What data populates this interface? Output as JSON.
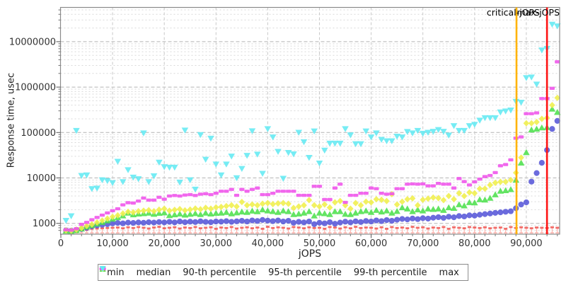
{
  "chart_data": {
    "type": "scatter",
    "title": "",
    "xlabel": "jOPS",
    "ylabel": "Response time, usec",
    "legend_position": "bottom",
    "x_axis": {
      "min": 0,
      "max": 96500,
      "tick_values": [
        0,
        10000,
        20000,
        30000,
        40000,
        50000,
        60000,
        70000,
        80000,
        90000
      ],
      "tick_labels": [
        "0",
        "10,000",
        "20,000",
        "30,000",
        "40,000",
        "50,000",
        "60,000",
        "70,000",
        "80,000",
        "90,000"
      ],
      "minor_tick_step": 2000
    },
    "y_axis": {
      "scale": "log",
      "min": 600,
      "max": 56000000,
      "tick_values": [
        1000,
        10000,
        100000,
        1000000,
        10000000
      ],
      "tick_labels": [
        "1000",
        "10000",
        "100000",
        "1000000",
        "10000000"
      ]
    },
    "annotations": [
      {
        "label": "critical-jOPS",
        "x": 88100,
        "color": "#ffb300"
      },
      {
        "label": "max-jOPS",
        "x": 94000,
        "color": "#fe1414"
      }
    ],
    "x": [
      1000,
      2000,
      3000,
      4000,
      5000,
      6000,
      7000,
      8000,
      9000,
      10000,
      11000,
      12000,
      13000,
      14000,
      15000,
      16000,
      17000,
      18000,
      19000,
      20000,
      21000,
      22000,
      23000,
      24000,
      25000,
      26000,
      27000,
      28000,
      29000,
      30000,
      31000,
      32000,
      33000,
      34000,
      35000,
      36000,
      37000,
      38000,
      39000,
      40000,
      41000,
      42000,
      43000,
      44000,
      45000,
      46000,
      47000,
      48000,
      49000,
      50000,
      51000,
      52000,
      53000,
      54000,
      55000,
      56000,
      57000,
      58000,
      59000,
      60000,
      61000,
      62000,
      63000,
      64000,
      65000,
      66000,
      67000,
      68000,
      69000,
      70000,
      71000,
      72000,
      73000,
      74000,
      75000,
      76000,
      77000,
      78000,
      79000,
      80000,
      81000,
      82000,
      83000,
      84000,
      85000,
      86000,
      87000,
      88000,
      89000,
      90000,
      91000,
      92000,
      93000,
      94000,
      95000,
      96000
    ],
    "series": [
      {
        "name": "min",
        "key": "min",
        "marker": "square-errorbar",
        "color": "#f05550",
        "values": [
          680,
          660,
          690,
          700,
          720,
          760,
          770,
          780,
          790,
          800,
          810,
          780,
          820,
          790,
          830,
          800,
          770,
          810,
          840,
          780,
          800,
          820,
          770,
          810,
          790,
          830,
          780,
          800,
          820,
          760,
          810,
          790,
          830,
          770,
          800,
          820,
          780,
          810,
          760,
          840,
          790,
          820,
          800,
          770,
          830,
          810,
          780,
          820,
          790,
          800,
          760,
          830,
          810,
          770,
          820,
          780,
          840,
          790,
          810,
          800,
          770,
          820,
          760,
          830,
          790,
          810,
          780,
          840,
          800,
          820,
          770,
          810,
          790,
          830,
          760,
          820,
          800,
          780,
          830,
          810,
          790,
          820,
          780,
          800,
          810,
          760,
          830,
          790,
          820,
          800,
          780,
          810,
          800,
          790,
          820,
          800
        ]
      },
      {
        "name": "median",
        "key": "median",
        "marker": "circle",
        "color": "#5757d8",
        "values": [
          700,
          690,
          720,
          750,
          800,
          860,
          900,
          930,
          960,
          1000,
          1020,
          1000,
          1040,
          1020,
          1050,
          1030,
          1060,
          1040,
          1070,
          1050,
          1080,
          1050,
          1100,
          1060,
          1090,
          1070,
          1110,
          1080,
          1060,
          1100,
          1090,
          1120,
          1080,
          1110,
          1140,
          1100,
          1160,
          1130,
          1190,
          1150,
          1120,
          1160,
          1100,
          1140,
          1030,
          1080,
          1050,
          1100,
          960,
          1030,
          1000,
          1060,
          980,
          1040,
          1090,
          1050,
          1110,
          1070,
          1130,
          1100,
          1160,
          1120,
          1180,
          1140,
          1200,
          1250,
          1220,
          1280,
          1240,
          1300,
          1270,
          1330,
          1370,
          1320,
          1400,
          1360,
          1450,
          1420,
          1500,
          1480,
          1550,
          1600,
          1650,
          1700,
          1750,
          1800,
          1850,
          2150,
          2600,
          2900,
          8300,
          12800,
          21500,
          41000,
          120000,
          180000
        ]
      },
      {
        "name": "90-th percentile",
        "key": "p90",
        "marker": "triangle-up",
        "color": "#4de04d",
        "values": [
          680,
          670,
          700,
          760,
          840,
          900,
          980,
          1060,
          1150,
          1250,
          1350,
          1480,
          1700,
          1560,
          1620,
          1650,
          1700,
          1600,
          1680,
          1720,
          1500,
          1560,
          1620,
          1540,
          1600,
          1660,
          1580,
          1700,
          1620,
          1680,
          1700,
          1760,
          1640,
          1720,
          1800,
          1760,
          1880,
          1820,
          2000,
          1900,
          1840,
          1760,
          1900,
          1830,
          1580,
          1620,
          1700,
          1830,
          1470,
          1700,
          1650,
          1580,
          1830,
          1830,
          1600,
          1580,
          1700,
          1830,
          1900,
          1760,
          1950,
          1800,
          1900,
          1700,
          1850,
          2230,
          2100,
          1830,
          2000,
          1900,
          2100,
          2050,
          2100,
          1950,
          2230,
          2160,
          2600,
          2450,
          2900,
          2850,
          3350,
          3300,
          3600,
          4300,
          5150,
          5300,
          5600,
          9000,
          21500,
          36500,
          115000,
          120000,
          128000,
          130000,
          330000,
          280000
        ]
      },
      {
        "name": "95-th percentile",
        "key": "p95",
        "marker": "diamond",
        "color": "#f0ef4b",
        "values": [
          700,
          690,
          730,
          790,
          880,
          950,
          1050,
          1150,
          1270,
          1400,
          1500,
          1650,
          1800,
          1750,
          1850,
          1900,
          1950,
          1850,
          2000,
          2100,
          1900,
          1980,
          2060,
          1930,
          2010,
          2120,
          2040,
          2200,
          2100,
          2250,
          2300,
          2400,
          2500,
          2350,
          2950,
          2500,
          2600,
          2500,
          2700,
          2800,
          2650,
          2750,
          2800,
          2700,
          2180,
          2350,
          2500,
          3250,
          2500,
          2350,
          2600,
          2230,
          2900,
          3100,
          2500,
          2100,
          2800,
          2500,
          3000,
          2900,
          3400,
          3300,
          3100,
          4400,
          2600,
          3000,
          3400,
          3550,
          2500,
          3300,
          3500,
          3700,
          3600,
          3250,
          4000,
          3400,
          4600,
          4000,
          4800,
          4600,
          5800,
          5800,
          7000,
          7800,
          8200,
          8200,
          9000,
          13000,
          28000,
          160000,
          160000,
          170000,
          200000,
          210000,
          400000,
          580000
        ]
      },
      {
        "name": "99-th percentile",
        "key": "p99",
        "marker": "hbar",
        "color": "#ef52ea",
        "values": [
          720,
          710,
          760,
          950,
          1050,
          1200,
          1350,
          1520,
          1700,
          1900,
          2100,
          2550,
          2850,
          2800,
          3100,
          3600,
          3250,
          3250,
          3750,
          3400,
          4000,
          4100,
          4000,
          4200,
          4300,
          4100,
          4400,
          4500,
          4300,
          4600,
          5100,
          5100,
          5600,
          4150,
          5600,
          5100,
          5600,
          6000,
          4300,
          4300,
          4600,
          5100,
          5100,
          5100,
          5100,
          4150,
          4150,
          4150,
          6550,
          6550,
          3350,
          3350,
          6000,
          7300,
          2900,
          4150,
          4150,
          4600,
          4600,
          6000,
          5800,
          4600,
          4400,
          4500,
          5800,
          5800,
          7300,
          7400,
          7300,
          7400,
          6700,
          6700,
          7600,
          7300,
          7300,
          6000,
          9700,
          8300,
          7000,
          8200,
          9400,
          10700,
          11300,
          13100,
          18500,
          19700,
          25000,
          75000,
          80000,
          260000,
          260000,
          270000,
          560000,
          560000,
          940000,
          3600000
        ]
      },
      {
        "name": "max",
        "key": "max",
        "marker": "triangle-down",
        "color": "#63e9f2",
        "values": [
          1150,
          1450,
          110000,
          11200,
          11500,
          5750,
          5900,
          9000,
          8600,
          7800,
          23000,
          8200,
          15000,
          10300,
          9500,
          97000,
          8200,
          11000,
          22000,
          17500,
          17000,
          17000,
          8000,
          112000,
          9000,
          5600,
          89000,
          25500,
          74000,
          20000,
          11500,
          20000,
          30000,
          10000,
          16000,
          31000,
          108000,
          33000,
          12500,
          120000,
          79000,
          38000,
          9700,
          36000,
          33500,
          100000,
          62000,
          28000,
          107000,
          21000,
          40500,
          57500,
          57500,
          57500,
          120000,
          88000,
          56000,
          56000,
          107000,
          79000,
          97000,
          70000,
          65000,
          65000,
          82000,
          79000,
          104000,
          97000,
          110000,
          95000,
          100000,
          105000,
          115000,
          105000,
          87000,
          140000,
          110000,
          110000,
          140000,
          150000,
          185000,
          210000,
          210000,
          210000,
          280000,
          295000,
          310000,
          480000,
          460000,
          1600000,
          1650000,
          1150000,
          6500000,
          7000000,
          24000000,
          22000000
        ]
      }
    ]
  }
}
